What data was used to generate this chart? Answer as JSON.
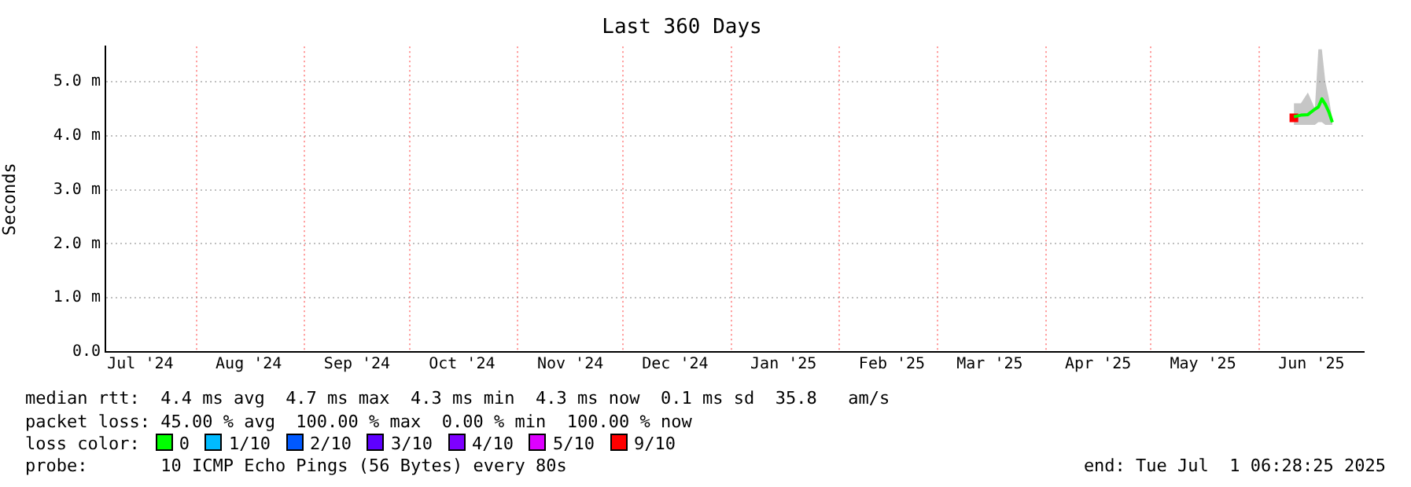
{
  "chart_data": {
    "type": "line",
    "title": "Last 360 Days",
    "ylabel": "Seconds",
    "legend_title": "loss color:",
    "legend": "bottom",
    "grid": true,
    "marker": "none",
    "xlim": [
      "2024-07-06",
      "2025-07-01"
    ],
    "xticks": [
      {
        "value": "2024-07-16",
        "label": "Jul '24"
      },
      {
        "value": "2024-08-01",
        "label": null
      },
      {
        "value": "2024-08-16",
        "label": "Aug '24"
      },
      {
        "value": "2024-09-01",
        "label": null
      },
      {
        "value": "2024-09-16",
        "label": "Sep '24"
      },
      {
        "value": "2024-10-01",
        "label": null
      },
      {
        "value": "2024-10-16",
        "label": "Oct '24"
      },
      {
        "value": "2024-11-01",
        "label": null
      },
      {
        "value": "2024-11-16",
        "label": "Nov '24"
      },
      {
        "value": "2024-12-01",
        "label": null
      },
      {
        "value": "2024-12-16",
        "label": "Dec '24"
      },
      {
        "value": "2025-01-01",
        "label": null
      },
      {
        "value": "2025-01-16",
        "label": "Jan '25"
      },
      {
        "value": "2025-02-01",
        "label": null
      },
      {
        "value": "2025-02-16",
        "label": "Feb '25"
      },
      {
        "value": "2025-03-01",
        "label": null
      },
      {
        "value": "2025-03-16",
        "label": "Mar '25"
      },
      {
        "value": "2025-04-01",
        "label": null
      },
      {
        "value": "2025-04-16",
        "label": "Apr '25"
      },
      {
        "value": "2025-05-01",
        "label": null
      },
      {
        "value": "2025-05-16",
        "label": "May '25"
      },
      {
        "value": "2025-06-01",
        "label": null
      },
      {
        "value": "2025-06-16",
        "label": "Jun '25"
      }
    ],
    "ylim": [
      0,
      5.65
    ],
    "yticks": [
      {
        "value": 0,
        "label": "0.0"
      },
      {
        "value": 1,
        "label": "1.0 m"
      },
      {
        "value": 2,
        "label": "2.0 m"
      },
      {
        "value": 3,
        "label": "3.0 m"
      },
      {
        "value": 4,
        "label": "4.0 m"
      },
      {
        "value": 5,
        "label": "5.0 m"
      }
    ],
    "series": [
      {
        "name": "0",
        "color": "#00ff00",
        "x": [
          "2025-06-11",
          "2025-06-13",
          "2025-06-15",
          "2025-06-17",
          "2025-06-18",
          "2025-06-19",
          "2025-06-20",
          "2025-06-21",
          "2025-06-22"
        ],
        "values": [
          4.35,
          4.38,
          4.39,
          4.49,
          4.53,
          4.68,
          4.58,
          4.44,
          4.25
        ],
        "lower": [
          4.2,
          4.2,
          4.2,
          4.2,
          4.25,
          4.25,
          4.2,
          4.2,
          4.2
        ],
        "upper": [
          4.6,
          4.6,
          4.8,
          4.5,
          5.6,
          5.6,
          5.0,
          4.7,
          4.3
        ]
      },
      {
        "name": "1/10",
        "color": "#00bbff"
      },
      {
        "name": "2/10",
        "color": "#0059ff"
      },
      {
        "name": "3/10",
        "color": "#5e00ff"
      },
      {
        "name": "4/10",
        "color": "#7e00ff"
      },
      {
        "name": "5/10",
        "color": "#dd00ff"
      },
      {
        "name": "9/10",
        "color": "#ff0000",
        "marker": "square",
        "x": [
          "2025-06-11"
        ],
        "values": [
          4.33
        ]
      }
    ],
    "annotations": [
      "median rtt:  4.4 ms avg  4.7 ms max  4.3 ms min  4.3 ms now  0.1 ms sd  35.8   am/s",
      "packet loss: 45.00 % avg  100.00 % max  0.00 % min  100.00 % now",
      "probe:       10 ICMP Echo Pings (56 Bytes) every 80s",
      "end: Tue Jul  1 06:28:25 2025"
    ]
  }
}
